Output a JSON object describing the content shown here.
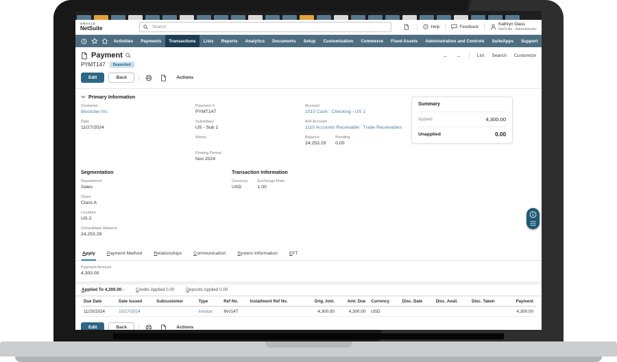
{
  "theme": {
    "nav_bg": "#4d6e81",
    "nav_active_bg": "#1c3d52",
    "accent_button": "#2d6684",
    "link_color": "#4b7da1",
    "badge_bg": "#c9e1f0",
    "badge_text": "#1f5a77",
    "tab_underline": "#2f7fa0",
    "widget_bg": "#1e5a75"
  },
  "browser_strip": {
    "tiles": [
      "#57798f",
      "#e2a23c",
      "#57798f",
      "#d9d9d9",
      "#57798f",
      "#57798f",
      "#d9d9d9",
      "#57798f",
      "#57798f",
      "#57798f",
      "#d9d9d9",
      "#57798f",
      "#57798f",
      "#e2a23c",
      "#57798f",
      "#d9d9d9",
      "#57798f",
      "#57798f",
      "#57798f",
      "#d9d9d9",
      "#57798f",
      "#57798f",
      "#d9d9d9",
      "#57798f",
      "#57798f",
      "#57798f"
    ]
  },
  "topbar": {
    "logo_line1": "ORACLE",
    "logo_line2": "NetSuite",
    "search_placeholder": "Search",
    "help_label": "Help",
    "feedback_label": "Feedback",
    "user": {
      "name": "Kathryn Glass",
      "role": "NetSuite - Administrator"
    }
  },
  "nav": {
    "items": [
      {
        "label": "Activities"
      },
      {
        "label": "Payments"
      },
      {
        "label": "Transactions",
        "active": true
      },
      {
        "label": "Lists"
      },
      {
        "label": "Reports"
      },
      {
        "label": "Analytics"
      },
      {
        "label": "Documents"
      },
      {
        "label": "Setup"
      },
      {
        "label": "Customization"
      },
      {
        "label": "Commerce"
      },
      {
        "label": "Fixed Assets"
      },
      {
        "label": "Administration and Controls"
      },
      {
        "label": "SuiteApps"
      },
      {
        "label": "Support"
      }
    ]
  },
  "page": {
    "title": "Payment",
    "record_id": "PYMT147",
    "status_badge": "Deposited",
    "header_links": {
      "list": "List",
      "search": "Search",
      "customize": "Customize",
      "back_arrow": "←",
      "forward_arrow": "→"
    },
    "toolbar": {
      "edit": "Edit",
      "back": "Back",
      "actions": "Actions"
    }
  },
  "primary_info": {
    "title": "Primary Information",
    "customer": {
      "label": "Customer",
      "value": "Blockster Inc."
    },
    "date": {
      "label": "Date",
      "value": "11/27/2024"
    },
    "payment_no": {
      "label": "Payment #",
      "value": "PYMT147"
    },
    "subsidiary": {
      "label": "Subsidiary",
      "value": "US - Sub 1"
    },
    "memo": {
      "label": "Memo",
      "value": ""
    },
    "posting_period": {
      "label": "Posting Period",
      "value": "Nov 2024"
    },
    "account": {
      "label": "Account",
      "value": "1010 Cash : Checking - US 1"
    },
    "ar_account": {
      "label": "A/R Account",
      "value": "1110 Accounts Receivable : Trade Receivables"
    },
    "balance": {
      "label": "Balance",
      "value": "24,253.29"
    },
    "pending": {
      "label": "Pending",
      "value": "0.00"
    }
  },
  "summary": {
    "title": "Summary",
    "applied": {
      "label": "Applied",
      "value": "4,300.00"
    },
    "unapplied": {
      "label": "Unapplied",
      "value": "0.00"
    }
  },
  "segmentation": {
    "title": "Segmentation",
    "department": {
      "label": "Department",
      "value": "Sales"
    },
    "class": {
      "label": "Class",
      "value": "Class A"
    },
    "location": {
      "label": "Location",
      "value": "US-2"
    },
    "consolidate_balance": {
      "label": "Consolidate Balance",
      "value": "24,253.29"
    }
  },
  "transaction_info": {
    "title": "Transaction Information",
    "currency": {
      "label": "Currency",
      "value": "USD"
    },
    "exchange_rate": {
      "label": "Exchange Rate",
      "value": "1.00"
    }
  },
  "tabs": [
    {
      "label": "Apply",
      "active": true
    },
    {
      "label": "Payment Method"
    },
    {
      "label": "Relationships"
    },
    {
      "label": "Communication"
    },
    {
      "label": "System Information"
    },
    {
      "label": "EFT"
    }
  ],
  "payment_amount": {
    "label": "Payment Amount",
    "value": "4,300.00"
  },
  "subtabs": [
    {
      "label": "Applied To 4,300.00",
      "active": true
    },
    {
      "label": "Credits Applied 0.00"
    },
    {
      "label": "Deposits Applied 0.00"
    }
  ],
  "table": {
    "columns": [
      "Due Date",
      "Date Issued",
      "Subcustomer",
      "Type",
      "Ref No.",
      "Installment Ref No.",
      "Orig. Amt.",
      "Amt. Due",
      "Currency",
      "Disc. Date",
      "Disc. Avail.",
      "Disc. Taken",
      "Payment"
    ],
    "rows": [
      [
        "11/20/2024",
        "10/27/2024",
        "",
        "Invoice",
        "INV147",
        "",
        "4,300.00",
        "4,300.00",
        "USD",
        "",
        "",
        "",
        "4,300.00"
      ]
    ]
  }
}
